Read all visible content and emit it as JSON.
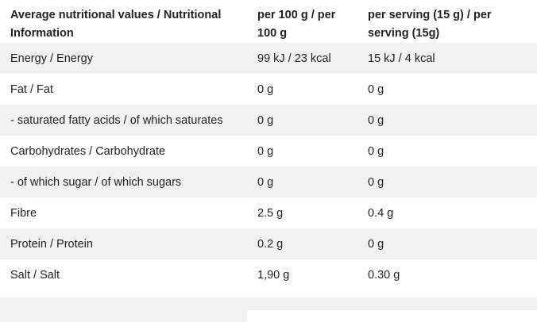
{
  "table": {
    "headers": [
      "Average nutritional values / Nutritional Information",
      "per 100 g / per 100 g",
      "per serving (15 g) / per serving (15g)"
    ],
    "rows": [
      [
        "Energy / Energy",
        "99 kJ / 23 kcal",
        "15 kJ / 4 kcal"
      ],
      [
        "Fat / Fat",
        "0 g",
        "0 g"
      ],
      [
        "- saturated fatty acids / of which saturates",
        "0 g",
        "0 g"
      ],
      [
        "Carbohydrates / Carbohydrate",
        "0 g",
        "0 g"
      ],
      [
        "- of which sugar / of which sugars",
        "0 g",
        "0 g"
      ],
      [
        "Fibre",
        "2.5 g",
        "0.4 g"
      ],
      [
        "Protein / Protein",
        "0.2 g",
        "0 g"
      ],
      [
        "Salt / Salt",
        "1,90 g",
        "0.30 g"
      ]
    ]
  }
}
